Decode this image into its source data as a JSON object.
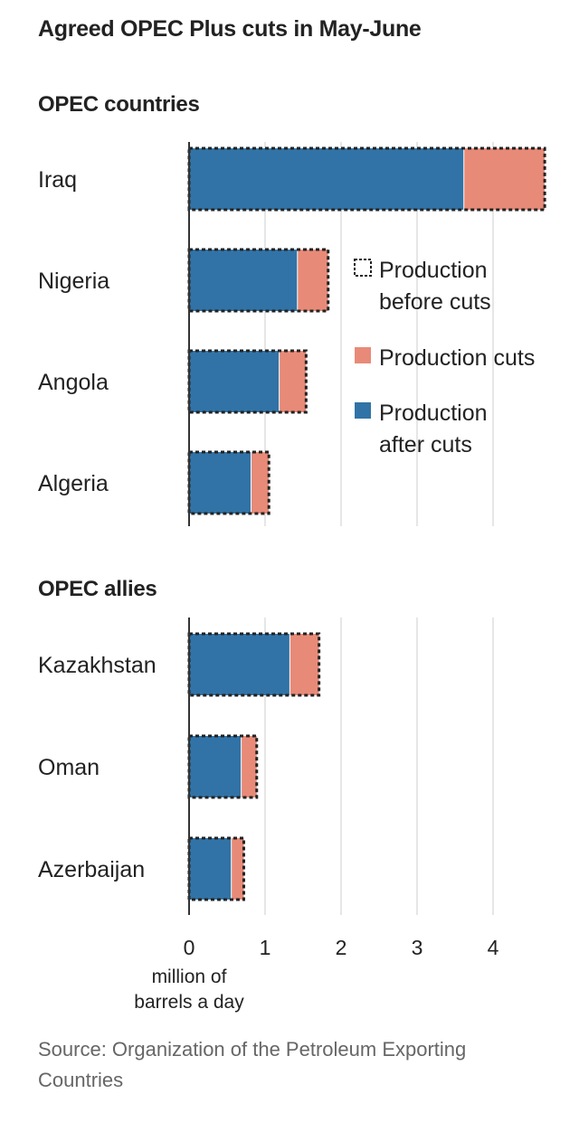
{
  "chart_data": {
    "type": "bar",
    "stacked": true,
    "orientation": "horizontal",
    "title": "Agreed OPEC Plus cuts in May-June",
    "xlabel": "million of barrels a day",
    "xlim": [
      0,
      4.7
    ],
    "xticks": [
      0,
      1,
      2,
      3,
      4
    ],
    "grid": true,
    "legend_position": "right",
    "legend": [
      {
        "key": "before",
        "label_lines": [
          "Production",
          "before cuts"
        ],
        "style": "dotted-outline"
      },
      {
        "key": "cuts",
        "label_lines": [
          "Production cuts"
        ],
        "color": "#e88a78"
      },
      {
        "key": "after",
        "label_lines": [
          "Production",
          "after cuts"
        ],
        "color": "#3173a6"
      }
    ],
    "groups": [
      {
        "name": "OPEC countries",
        "categories": [
          "Iraq",
          "Nigeria",
          "Angola",
          "Algeria"
        ],
        "series": [
          {
            "name": "Production after cuts",
            "values": [
              3.61,
              1.42,
              1.18,
              0.81
            ]
          },
          {
            "name": "Production cuts",
            "values": [
              1.07,
              0.41,
              0.36,
              0.24
            ]
          }
        ],
        "production_before_cuts": [
          4.68,
          1.83,
          1.54,
          1.05
        ]
      },
      {
        "name": "OPEC allies",
        "categories": [
          "Kazakhstan",
          "Oman",
          "Azerbaijan"
        ],
        "series": [
          {
            "name": "Production after cuts",
            "values": [
              1.32,
              0.68,
              0.55
            ]
          },
          {
            "name": "Production cuts",
            "values": [
              0.39,
              0.21,
              0.17
            ]
          }
        ],
        "production_before_cuts": [
          1.71,
          0.89,
          0.72
        ]
      }
    ]
  },
  "source": "Source: Organization of the Petroleum Exporting Countries",
  "colors": {
    "after": "#3173a6",
    "cuts": "#e88a78",
    "grid": "#dddddd",
    "axis": "#333333",
    "text": "#222222",
    "source": "#666666"
  }
}
